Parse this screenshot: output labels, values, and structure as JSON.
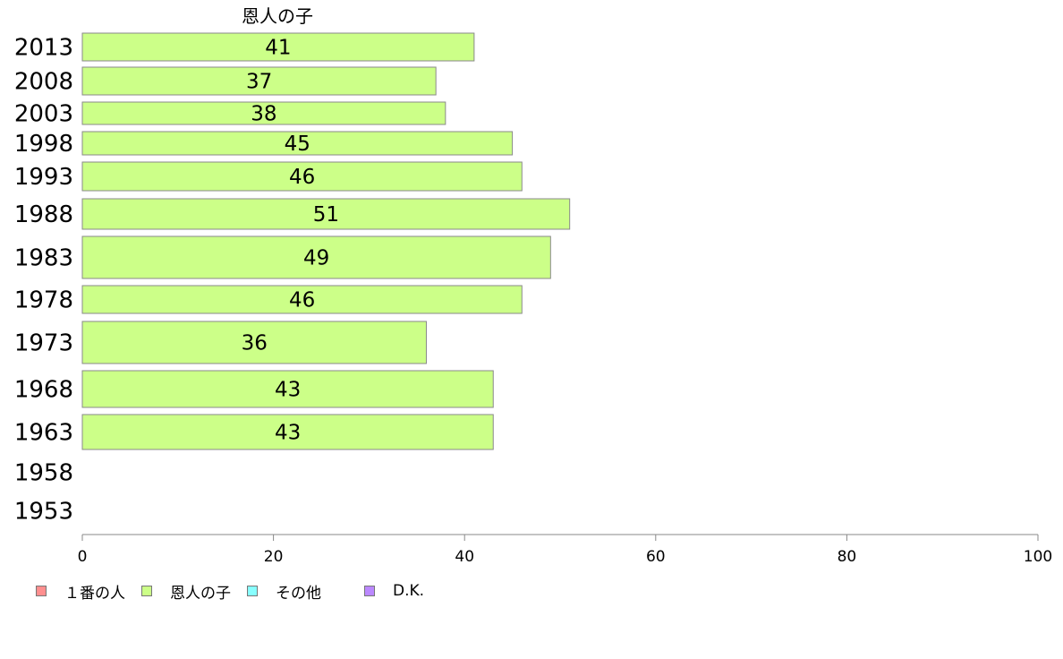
{
  "chart_data": {
    "type": "bar",
    "orientation": "horizontal",
    "stacked": true,
    "title": "恩人の子",
    "categories": [
      "2013",
      "2008",
      "2003",
      "1998",
      "1993",
      "1988",
      "1983",
      "1978",
      "1973",
      "1968",
      "1963",
      "1958",
      "1953"
    ],
    "series": [
      {
        "name": "１番の人",
        "color": "#ff8f8f",
        "values": [
          null,
          null,
          null,
          null,
          null,
          null,
          null,
          null,
          null,
          null,
          null,
          null,
          null
        ]
      },
      {
        "name": "恩人の子",
        "color": "#ccff88",
        "values": [
          41,
          37,
          38,
          45,
          46,
          51,
          49,
          46,
          36,
          43,
          43,
          null,
          null
        ]
      },
      {
        "name": "その他",
        "color": "#88ffff",
        "values": [
          null,
          null,
          null,
          null,
          null,
          null,
          null,
          null,
          null,
          null,
          null,
          null,
          null
        ]
      },
      {
        "name": "D.K.",
        "color": "#bb88ff",
        "values": [
          null,
          null,
          null,
          null,
          null,
          null,
          null,
          null,
          null,
          null,
          null,
          null,
          null
        ]
      }
    ],
    "xlim": [
      0,
      100
    ],
    "xticks": [
      "0",
      "20",
      "40",
      "60",
      "80",
      "100"
    ],
    "grid": false,
    "legend_position": "bottom-left"
  }
}
